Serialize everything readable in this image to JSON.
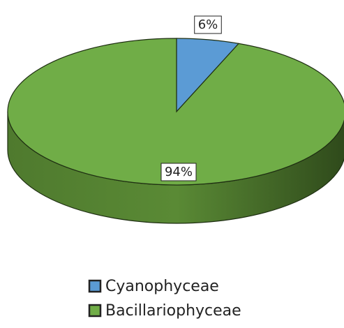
{
  "chart_data": {
    "type": "pie",
    "categories": [
      "Cyanophyceae",
      "Bacillariophyceae"
    ],
    "values": [
      6,
      94
    ],
    "value_labels": [
      "6%",
      "94%"
    ],
    "colors": [
      "#5b9bd5",
      "#70ad47"
    ]
  }
}
